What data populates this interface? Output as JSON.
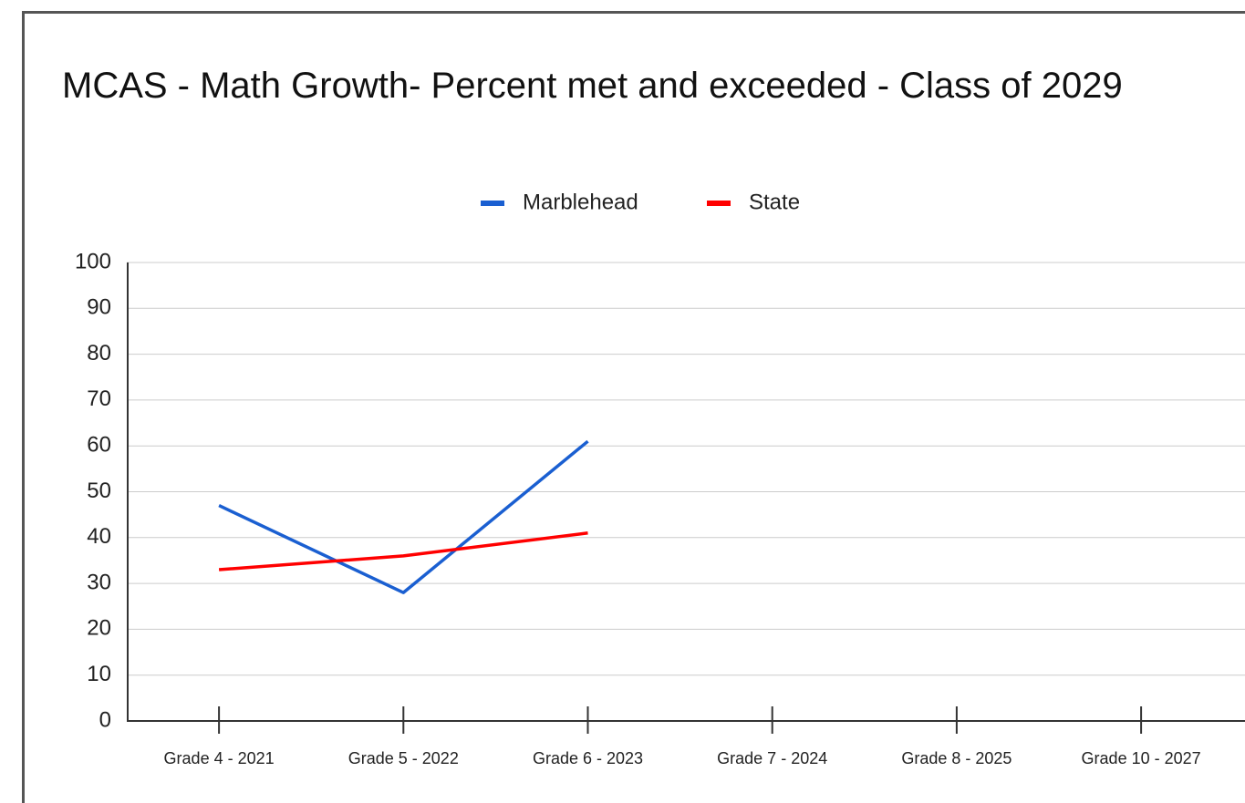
{
  "chart_data": {
    "type": "line",
    "title": "MCAS - Math Growth- Percent met and exceeded - Class of 2029",
    "categories": [
      "Grade 4 - 2021",
      "Grade 5 - 2022",
      "Grade 6 - 2023",
      "Grade 7 - 2024",
      "Grade 8 - 2025",
      "Grade 10 - 2027"
    ],
    "series": [
      {
        "name": "Marblehead",
        "color": "#1a5fd1",
        "values": [
          47,
          28,
          61,
          null,
          null,
          null
        ]
      },
      {
        "name": "State",
        "color": "#ff0000",
        "values": [
          33,
          36,
          41,
          null,
          null,
          null
        ]
      }
    ],
    "ylim": [
      0,
      100
    ],
    "yticks": [
      0,
      10,
      20,
      30,
      40,
      50,
      60,
      70,
      80,
      90,
      100
    ],
    "grid": true,
    "legend": "top"
  }
}
